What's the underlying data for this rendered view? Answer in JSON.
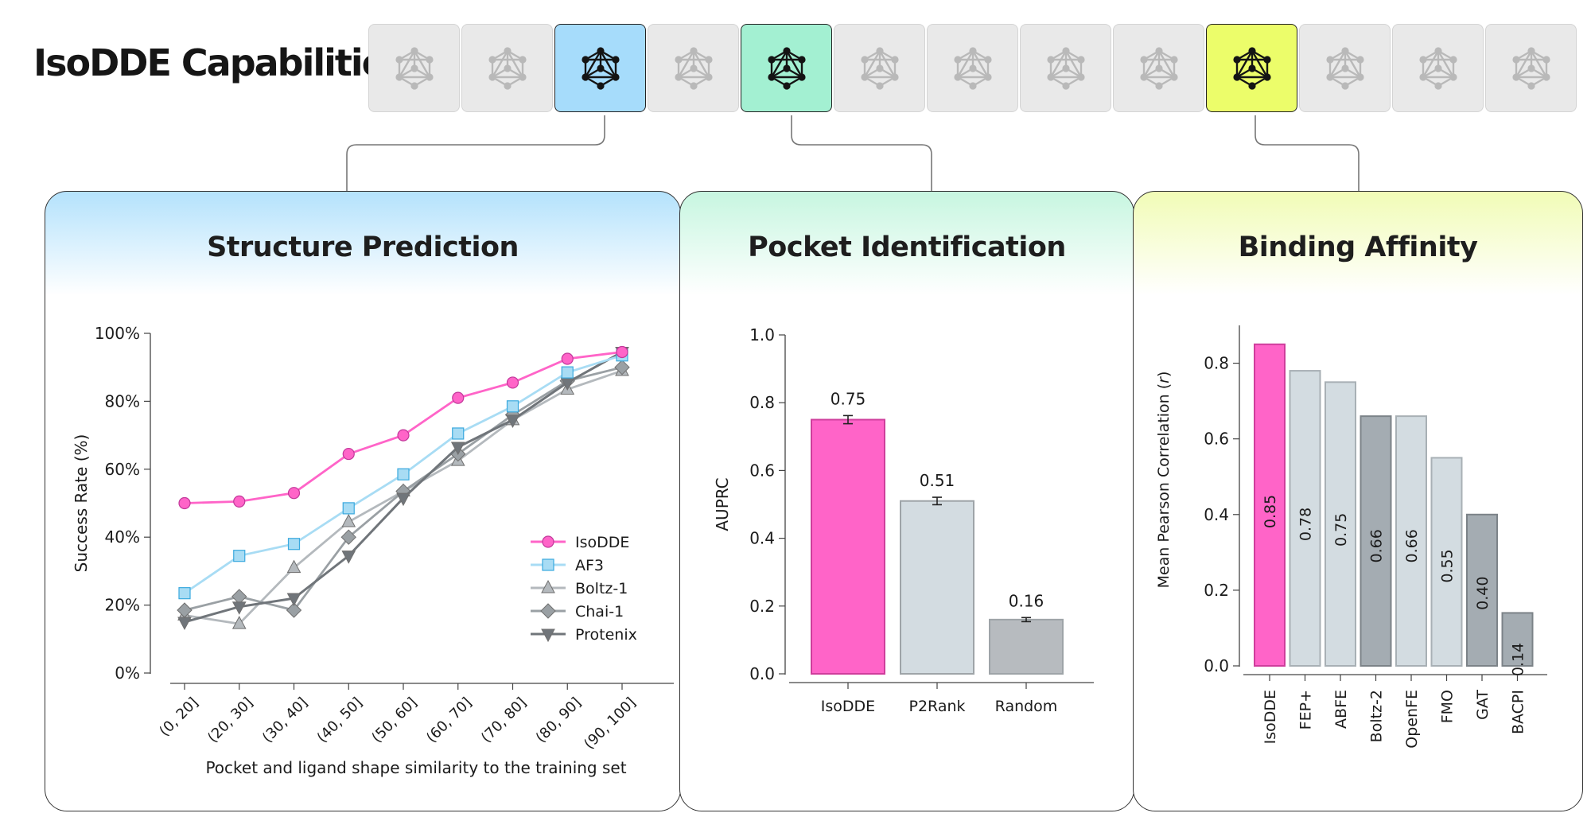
{
  "page": {
    "title": "IsoDDE Capabilities"
  },
  "colors": {
    "isodde": "#ff64c8",
    "af3": "#a8dcf4",
    "boltz": "#b4b9bd",
    "chai": "#9aa0a4",
    "protenix": "#70757a",
    "blue_tile": "#a6dcfb",
    "green_tile": "#a3f0d2",
    "yellow_tile": "#ecfd6a"
  },
  "tiles": [
    {
      "state": "inactive"
    },
    {
      "state": "inactive"
    },
    {
      "state": "active",
      "color": "#a6dcfb"
    },
    {
      "state": "inactive"
    },
    {
      "state": "active",
      "color": "#a3f0d2"
    },
    {
      "state": "inactive"
    },
    {
      "state": "inactive"
    },
    {
      "state": "inactive"
    },
    {
      "state": "inactive"
    },
    {
      "state": "active",
      "color": "#ecfd6a"
    },
    {
      "state": "inactive"
    },
    {
      "state": "inactive"
    },
    {
      "state": "inactive"
    }
  ],
  "panels": {
    "structure": {
      "title": "Structure Prediction"
    },
    "pocket": {
      "title": "Pocket Identification"
    },
    "affinity": {
      "title": "Binding Affinity"
    }
  },
  "chart_data": [
    {
      "type": "line",
      "title": "Structure Prediction",
      "xlabel": "Pocket and ligand shape similarity to the training set",
      "ylabel": "Success Rate (%)",
      "categories": [
        "(0, 20]",
        "(20, 30]",
        "(30, 40]",
        "(40, 50]",
        "(50, 60]",
        "(60, 70]",
        "(70, 80]",
        "(80, 90]",
        "(90, 100]"
      ],
      "ylim": [
        0,
        100
      ],
      "yticks": [
        0,
        20,
        40,
        60,
        80,
        100
      ],
      "ytick_labels": [
        "0%",
        "20%",
        "40%",
        "60%",
        "80%",
        "100%"
      ],
      "legend_position": "center-right",
      "series": [
        {
          "name": "IsoDDE",
          "marker": "circle",
          "color": "#ff64c8",
          "values": [
            50,
            50.5,
            53,
            64.5,
            70,
            81,
            85.5,
            92.5,
            94.5
          ]
        },
        {
          "name": "AF3",
          "marker": "square",
          "color": "#a8dcf4",
          "values": [
            23.5,
            34.5,
            38,
            48.5,
            58.5,
            70.5,
            78.5,
            88.5,
            93.5
          ]
        },
        {
          "name": "Boltz-1",
          "marker": "triangle-up",
          "color": "#b4b9bd",
          "values": [
            17,
            14.5,
            31,
            44.5,
            53.5,
            62.5,
            74.5,
            83.5,
            89
          ]
        },
        {
          "name": "Chai-1",
          "marker": "diamond",
          "color": "#9aa0a4",
          "values": [
            18.5,
            22.5,
            18.5,
            40,
            53.5,
            64.5,
            76,
            86,
            90
          ]
        },
        {
          "name": "Protenix",
          "marker": "triangle-down",
          "color": "#70757a",
          "values": [
            15,
            19.5,
            22,
            34.5,
            51.5,
            66.5,
            74.5,
            85.5,
            94.5
          ]
        }
      ]
    },
    {
      "type": "bar",
      "title": "Pocket Identification",
      "xlabel": "",
      "ylabel": "AUPRC",
      "categories": [
        "IsoDDE",
        "P2Rank",
        "Random"
      ],
      "values": [
        0.75,
        0.51,
        0.16
      ],
      "value_labels": [
        "0.75",
        "0.51",
        "0.16"
      ],
      "errors": [
        0.012,
        0.011,
        0.006
      ],
      "colors": [
        "#ff64c8",
        "#d3dce1",
        "#b7bbbf"
      ],
      "ylim": [
        0,
        1.0
      ],
      "yticks": [
        0.0,
        0.2,
        0.4,
        0.6,
        0.8,
        1.0
      ],
      "ytick_labels": [
        "0.0",
        "0.2",
        "0.4",
        "0.6",
        "0.8",
        "1.0"
      ]
    },
    {
      "type": "bar",
      "title": "Binding Affinity",
      "xlabel": "",
      "ylabel_main": "Mean Pearson Correlation (",
      "ylabel_var": "r",
      "ylabel_end": ")",
      "categories": [
        "IsoDDE",
        "FEP+",
        "ABFE",
        "Boltz-2",
        "OpenFE",
        "FMO",
        "GAT",
        "BACPI"
      ],
      "values": [
        0.85,
        0.78,
        0.75,
        0.66,
        0.66,
        0.55,
        0.4,
        0.14
      ],
      "value_labels": [
        "0.85",
        "0.78",
        "0.75",
        "0.66",
        "0.66",
        "0.55",
        "0.40",
        "0.14"
      ],
      "colors": [
        "#ff64c8",
        "#d3dce1",
        "#d3dce1",
        "#a4acb2",
        "#d3dce1",
        "#d3dce1",
        "#a4acb2",
        "#a4acb2"
      ],
      "ylim": [
        0,
        0.9
      ],
      "yticks": [
        0.0,
        0.2,
        0.4,
        0.6,
        0.8
      ],
      "ytick_labels": [
        "0.0",
        "0.2",
        "0.4",
        "0.6",
        "0.8"
      ]
    }
  ]
}
